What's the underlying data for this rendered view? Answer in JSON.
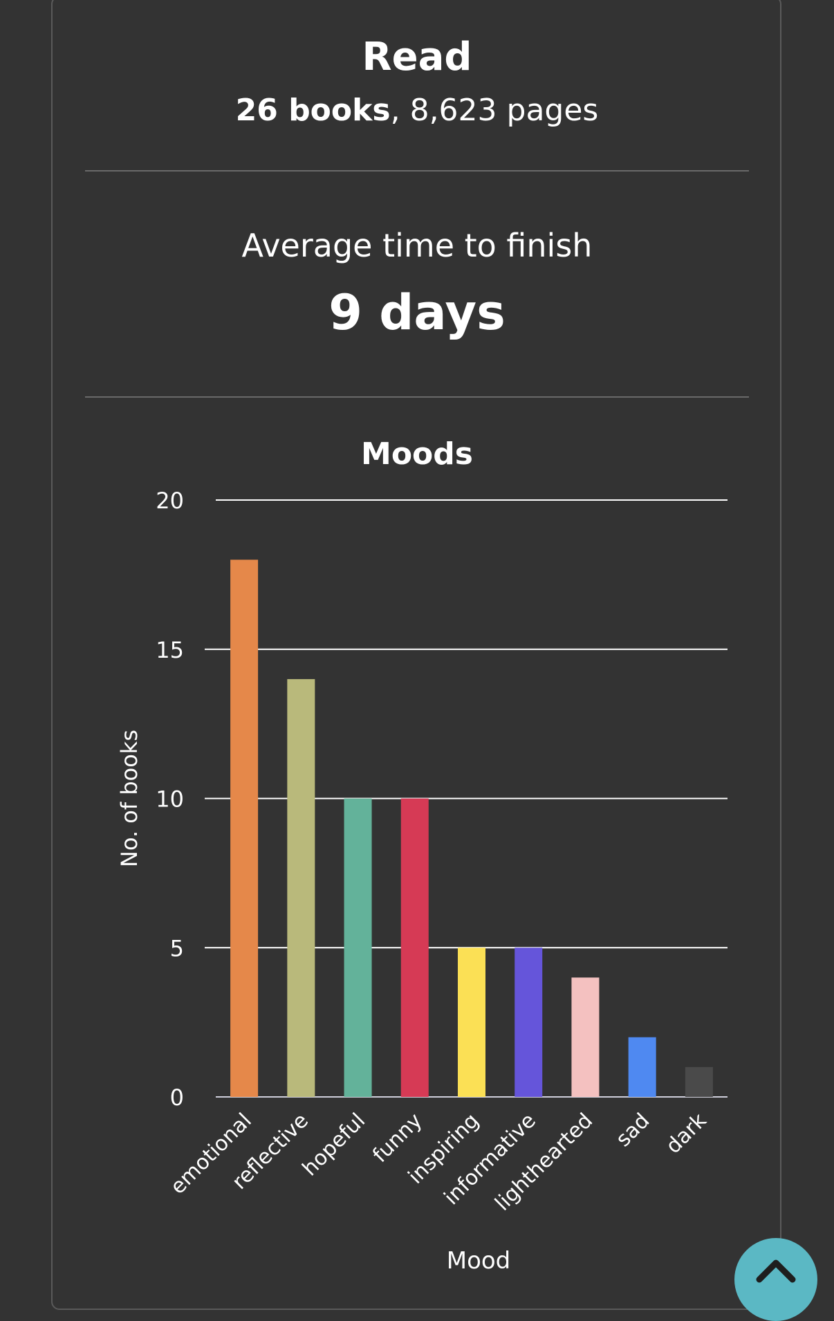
{
  "read": {
    "title": "Read",
    "books": "26 books",
    "separator": ", ",
    "pages": "8,623 pages"
  },
  "average": {
    "label": "Average time to finish",
    "value": "9 days"
  },
  "chart_data": {
    "type": "bar",
    "title": "Moods",
    "xlabel": "Mood",
    "ylabel": "No. of books",
    "ylim": [
      0,
      20
    ],
    "yticks": [
      0,
      5,
      10,
      15,
      20
    ],
    "grid": true,
    "categories": [
      "emotional",
      "reflective",
      "hopeful",
      "funny",
      "inspiring",
      "informative",
      "lighthearted",
      "sad",
      "dark"
    ],
    "values": [
      18,
      14,
      10,
      10,
      5,
      5,
      4,
      2,
      1
    ],
    "colors": [
      "#e5884a",
      "#b9b97b",
      "#63b29a",
      "#d63a55",
      "#fbe055",
      "#6555da",
      "#f4c1c0",
      "#4f89f1",
      "#4a4a4a"
    ]
  },
  "scroll_top_icon": "chevron-up-icon"
}
